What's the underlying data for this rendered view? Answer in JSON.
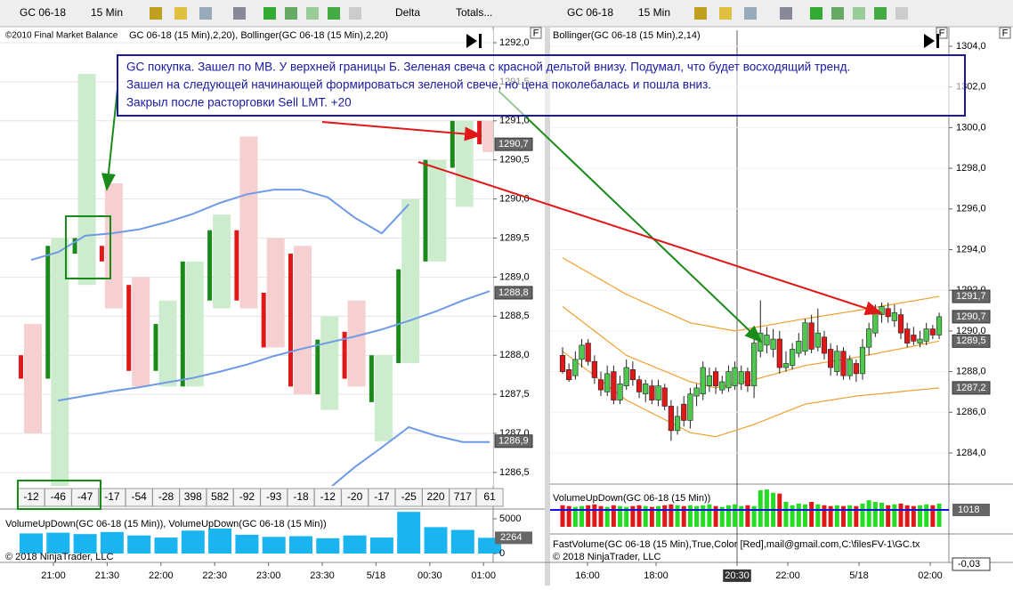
{
  "toolbar": {
    "left": {
      "instrument": "GC 06-18",
      "interval": "15 Min",
      "study": "Delta",
      "mode": "Totals..."
    },
    "right": {
      "instrument": "GC 06-18",
      "interval": "15 Min"
    }
  },
  "panel_flag": "F",
  "annotation": [
    "GC покупка. Зашел по MB. У верхней границы Б. Зеленая свеча с красной дельтой внизу. Подумал, что будет восходящий тренд.",
    "Зашел на следующей начинающей формироваться зеленой свече, но цена поколебалась и пошла вниз.",
    "Закрыл после расторговки Sell LMT.  +20"
  ],
  "colors": {
    "up": "#1a8a1a",
    "down": "#e01818",
    "up_cell": "#cdeccd",
    "down_cell": "#f6d0d0",
    "band_left": "#6e9ae6",
    "band_right": "#f0a030",
    "volume_left": "#1ab4f0",
    "level_line": "#1010e0"
  },
  "left_chart": {
    "copyright": "©2010 Final Market Balance",
    "title": "GC 06-18 (15 Min),2,20), Bollinger(GC 06-18 (15 Min),2,20)",
    "yticks": [
      {
        "value": 1292.0,
        "label": "1292,0"
      },
      {
        "value": 1291.5,
        "label": "1291,5"
      },
      {
        "value": 1291.0,
        "label": "1291,0"
      },
      {
        "value": 1290.5,
        "label": "1290,5"
      },
      {
        "value": 1290.0,
        "label": "1290,0"
      },
      {
        "value": 1289.5,
        "label": "1289,5"
      },
      {
        "value": 1289.0,
        "label": "1289,0"
      },
      {
        "value": 1288.5,
        "label": "1288,5"
      },
      {
        "value": 1288.0,
        "label": "1288,0"
      },
      {
        "value": 1287.5,
        "label": "1287,5"
      },
      {
        "value": 1287.0,
        "label": "1287,0"
      },
      {
        "value": 1286.5,
        "label": "1286,5"
      }
    ],
    "price_markers": [
      {
        "value": 1290.7,
        "label": "1290,7"
      },
      {
        "value": 1288.8,
        "label": "1288,8"
      },
      {
        "value": 1286.9,
        "label": "1286,9"
      }
    ],
    "bars": [
      {
        "open": 1288.0,
        "high": 1288.4,
        "low": 1287.0,
        "close": 1287.7
      },
      {
        "open": 1287.7,
        "high": 1289.5,
        "low": 1286.3,
        "close": 1289.4
      },
      {
        "open": 1289.3,
        "high": 1291.6,
        "low": 1288.9,
        "close": 1289.5
      },
      {
        "open": 1289.4,
        "high": 1290.2,
        "low": 1288.6,
        "close": 1289.2
      },
      {
        "open": 1288.9,
        "high": 1289.0,
        "low": 1287.6,
        "close": 1287.8
      },
      {
        "open": 1287.8,
        "high": 1288.7,
        "low": 1287.6,
        "close": 1288.4
      },
      {
        "open": 1287.6,
        "high": 1289.2,
        "low": 1287.6,
        "close": 1289.2
      },
      {
        "open": 1288.7,
        "high": 1289.8,
        "low": 1288.6,
        "close": 1289.6
      },
      {
        "open": 1289.6,
        "high": 1290.8,
        "low": 1288.6,
        "close": 1288.7
      },
      {
        "open": 1288.8,
        "high": 1289.5,
        "low": 1288.1,
        "close": 1288.1
      },
      {
        "open": 1289.3,
        "high": 1289.4,
        "low": 1287.5,
        "close": 1287.6
      },
      {
        "open": 1287.5,
        "high": 1288.5,
        "low": 1287.3,
        "close": 1288.2
      },
      {
        "open": 1288.3,
        "high": 1288.7,
        "low": 1287.6,
        "close": 1287.7
      },
      {
        "open": 1287.4,
        "high": 1288.0,
        "low": 1286.9,
        "close": 1288.0
      },
      {
        "open": 1287.9,
        "high": 1290.0,
        "low": 1287.9,
        "close": 1289.1
      },
      {
        "open": 1289.2,
        "high": 1290.5,
        "low": 1289.2,
        "close": 1290.5
      },
      {
        "open": 1290.4,
        "high": 1291.0,
        "low": 1289.9,
        "close": 1291.0
      },
      {
        "open": 1291.0,
        "high": 1291.0,
        "low": 1290.6,
        "close": 1290.7
      }
    ],
    "bollinger": {
      "upper": [
        1289.22,
        1289.32,
        1289.53,
        1289.56,
        1289.61,
        1289.7,
        1289.81,
        1289.95,
        1290.06,
        1290.12,
        1290.12,
        1290.02,
        1289.76,
        1289.56,
        1289.93,
        null,
        null,
        null
      ],
      "middle": [
        null,
        1287.42,
        1287.48,
        1287.54,
        1287.59,
        1287.65,
        1287.71,
        1287.79,
        1287.88,
        1287.99,
        1288.08,
        1288.16,
        1288.24,
        1288.33,
        1288.44,
        1288.56,
        1288.7,
        1288.82
      ],
      "lower": [
        null,
        null,
        null,
        null,
        null,
        null,
        null,
        null,
        null,
        null,
        null,
        1286.28,
        1286.57,
        1286.82,
        1287.08,
        1286.97,
        1286.89,
        1286.89
      ]
    },
    "delta": [
      -12,
      -46,
      -47,
      -17,
      -54,
      -28,
      398,
      582,
      -92,
      -93,
      -18,
      -12,
      -20,
      -17,
      -25,
      220,
      717,
      61
    ],
    "volume": {
      "title": "VolumeUpDown(GC 06-18 (15 Min)), VolumeUpDown(GC 06-18 (15 Min))",
      "yticks": [
        0,
        5000
      ],
      "values": [
        2900,
        3000,
        2800,
        3100,
        2600,
        2300,
        3300,
        3600,
        2700,
        2400,
        2500,
        2200,
        2600,
        2300,
        6000,
        3800,
        3400,
        2264
      ],
      "last": 2264
    },
    "footer": "© 2018 NinjaTrader, LLC",
    "xticks": [
      "21:00",
      "21:30",
      "22:00",
      "22:30",
      "23:00",
      "23:30",
      "5/18",
      "00:30",
      "01:00"
    ]
  },
  "right_chart": {
    "title": "Bollinger(GC 06-18 (15 Min),2,14)",
    "yticks": [
      {
        "value": 1304.0,
        "label": "1304,0"
      },
      {
        "value": 1302.0,
        "label": "1302,0"
      },
      {
        "value": 1300.0,
        "label": "1300,0"
      },
      {
        "value": 1298.0,
        "label": "1298,0"
      },
      {
        "value": 1296.0,
        "label": "1296,0"
      },
      {
        "value": 1294.0,
        "label": "1294,0"
      },
      {
        "value": 1292.0,
        "label": "1292,0"
      },
      {
        "value": 1290.0,
        "label": "1290,0"
      },
      {
        "value": 1288.0,
        "label": "1288,0"
      },
      {
        "value": 1286.0,
        "label": "1286,0"
      },
      {
        "value": 1284.0,
        "label": "1284,0"
      }
    ],
    "price_markers": [
      {
        "value": 1291.7,
        "label": "1291,7"
      },
      {
        "value": 1290.7,
        "label": "1290,7"
      },
      {
        "value": 1289.5,
        "label": "1289,5"
      },
      {
        "value": 1287.2,
        "label": "1287,2"
      }
    ],
    "candles": [
      {
        "open": 1288.8,
        "high": 1289.2,
        "low": 1287.9,
        "close": 1288.0
      },
      {
        "open": 1288.1,
        "high": 1288.4,
        "low": 1287.5,
        "close": 1287.6
      },
      {
        "open": 1287.8,
        "high": 1289.0,
        "low": 1287.6,
        "close": 1288.6
      },
      {
        "open": 1288.6,
        "high": 1289.6,
        "low": 1288.2,
        "close": 1289.3
      },
      {
        "open": 1289.4,
        "high": 1289.6,
        "low": 1288.3,
        "close": 1288.5
      },
      {
        "open": 1288.5,
        "high": 1288.8,
        "low": 1287.4,
        "close": 1287.7
      },
      {
        "open": 1287.6,
        "high": 1288.0,
        "low": 1286.8,
        "close": 1287.1
      },
      {
        "open": 1287.0,
        "high": 1288.3,
        "low": 1286.8,
        "close": 1287.9
      },
      {
        "open": 1288.0,
        "high": 1288.3,
        "low": 1286.4,
        "close": 1286.6
      },
      {
        "open": 1286.6,
        "high": 1287.8,
        "low": 1286.4,
        "close": 1287.4
      },
      {
        "open": 1287.3,
        "high": 1288.6,
        "low": 1287.1,
        "close": 1288.2
      },
      {
        "open": 1288.1,
        "high": 1288.5,
        "low": 1287.3,
        "close": 1287.6
      },
      {
        "open": 1287.6,
        "high": 1287.8,
        "low": 1286.7,
        "close": 1287.0
      },
      {
        "open": 1286.9,
        "high": 1287.6,
        "low": 1286.5,
        "close": 1287.4
      },
      {
        "open": 1287.3,
        "high": 1287.6,
        "low": 1286.4,
        "close": 1286.6
      },
      {
        "open": 1286.6,
        "high": 1287.6,
        "low": 1286.3,
        "close": 1287.3
      },
      {
        "open": 1287.2,
        "high": 1287.4,
        "low": 1286.1,
        "close": 1286.3
      },
      {
        "open": 1286.3,
        "high": 1286.6,
        "low": 1284.6,
        "close": 1285.1
      },
      {
        "open": 1285.1,
        "high": 1286.3,
        "low": 1284.9,
        "close": 1285.8
      },
      {
        "open": 1286.4,
        "high": 1286.8,
        "low": 1285.3,
        "close": 1285.6
      },
      {
        "open": 1285.6,
        "high": 1287.2,
        "low": 1285.2,
        "close": 1286.9
      },
      {
        "open": 1286.8,
        "high": 1287.4,
        "low": 1286.3,
        "close": 1287.2
      },
      {
        "open": 1286.9,
        "high": 1288.5,
        "low": 1286.6,
        "close": 1288.2
      },
      {
        "open": 1287.3,
        "high": 1288.2,
        "low": 1287.0,
        "close": 1287.8
      },
      {
        "open": 1288.0,
        "high": 1288.2,
        "low": 1286.9,
        "close": 1287.3
      },
      {
        "open": 1287.1,
        "high": 1287.8,
        "low": 1286.9,
        "close": 1287.5
      },
      {
        "open": 1287.2,
        "high": 1288.3,
        "low": 1287.0,
        "close": 1288.0
      },
      {
        "open": 1287.3,
        "high": 1288.5,
        "low": 1287.1,
        "close": 1288.2
      },
      {
        "open": 1287.4,
        "high": 1288.3,
        "low": 1287.1,
        "close": 1288.0
      },
      {
        "open": 1288.0,
        "high": 1288.2,
        "low": 1287.0,
        "close": 1287.3
      },
      {
        "open": 1287.3,
        "high": 1289.8,
        "low": 1286.7,
        "close": 1289.4
      },
      {
        "open": 1289.0,
        "high": 1291.5,
        "low": 1288.7,
        "close": 1289.9
      },
      {
        "open": 1289.3,
        "high": 1290.2,
        "low": 1288.9,
        "close": 1289.8
      },
      {
        "open": 1289.1,
        "high": 1290.1,
        "low": 1288.7,
        "close": 1289.6
      },
      {
        "open": 1289.6,
        "high": 1290.0,
        "low": 1287.9,
        "close": 1288.2
      },
      {
        "open": 1288.2,
        "high": 1289.0,
        "low": 1288.0,
        "close": 1288.4
      },
      {
        "open": 1288.3,
        "high": 1289.4,
        "low": 1288.1,
        "close": 1289.1
      },
      {
        "open": 1288.9,
        "high": 1289.9,
        "low": 1288.7,
        "close": 1289.5
      },
      {
        "open": 1289.0,
        "high": 1290.6,
        "low": 1288.8,
        "close": 1290.4
      },
      {
        "open": 1290.4,
        "high": 1290.8,
        "low": 1288.9,
        "close": 1289.1
      },
      {
        "open": 1289.2,
        "high": 1291.1,
        "low": 1289.0,
        "close": 1289.9
      },
      {
        "open": 1289.7,
        "high": 1290.0,
        "low": 1288.6,
        "close": 1288.9
      },
      {
        "open": 1289.1,
        "high": 1289.4,
        "low": 1287.8,
        "close": 1288.2
      },
      {
        "open": 1288.0,
        "high": 1289.3,
        "low": 1287.8,
        "close": 1289.0
      },
      {
        "open": 1289.0,
        "high": 1289.2,
        "low": 1287.6,
        "close": 1287.8
      },
      {
        "open": 1287.8,
        "high": 1288.8,
        "low": 1287.6,
        "close": 1288.6
      },
      {
        "open": 1288.4,
        "high": 1288.6,
        "low": 1287.5,
        "close": 1287.9
      },
      {
        "open": 1287.9,
        "high": 1289.6,
        "low": 1287.6,
        "close": 1289.2
      },
      {
        "open": 1289.2,
        "high": 1290.4,
        "low": 1288.8,
        "close": 1290.1
      },
      {
        "open": 1289.9,
        "high": 1291.3,
        "low": 1289.7,
        "close": 1291.0
      },
      {
        "open": 1290.8,
        "high": 1291.4,
        "low": 1290.4,
        "close": 1291.2
      },
      {
        "open": 1291.1,
        "high": 1291.4,
        "low": 1290.4,
        "close": 1290.7
      },
      {
        "open": 1290.5,
        "high": 1291.3,
        "low": 1290.2,
        "close": 1290.9
      },
      {
        "open": 1290.8,
        "high": 1291.1,
        "low": 1289.6,
        "close": 1289.9
      },
      {
        "open": 1290.1,
        "high": 1290.4,
        "low": 1289.2,
        "close": 1289.4
      },
      {
        "open": 1289.8,
        "high": 1290.2,
        "low": 1289.3,
        "close": 1289.5
      },
      {
        "open": 1289.4,
        "high": 1290.0,
        "low": 1289.2,
        "close": 1289.6
      },
      {
        "open": 1289.5,
        "high": 1290.4,
        "low": 1289.3,
        "close": 1290.1
      },
      {
        "open": 1290.1,
        "high": 1290.3,
        "low": 1289.6,
        "close": 1289.8
      },
      {
        "open": 1289.8,
        "high": 1290.9,
        "low": 1289.6,
        "close": 1290.7
      }
    ],
    "bollinger": {
      "upper": [
        1293.6,
        1293.42,
        1293.24,
        1293.06,
        1292.88,
        1292.7,
        1292.52,
        1292.34,
        1292.16,
        1291.98,
        1291.8,
        1291.66,
        1291.52,
        1291.38,
        1291.24,
        1291.1,
        1290.96,
        1290.82,
        1290.68,
        1290.54,
        1290.4,
        1290.34,
        1290.29,
        1290.23,
        1290.17,
        1290.11,
        1290.06,
        1290.0,
        1290.05,
        1290.11,
        1290.16,
        1290.22,
        1290.27,
        1290.33,
        1290.38,
        1290.44,
        1290.49,
        1290.55,
        1290.6,
        1290.65,
        1290.7,
        1290.75,
        1290.8,
        1290.85,
        1290.9,
        1290.95,
        1291.0,
        1291.05,
        1291.11,
        1291.16,
        1291.22,
        1291.27,
        1291.32,
        1291.38,
        1291.43,
        1291.48,
        1291.54,
        1291.59,
        1291.65,
        1291.7
      ],
      "middle": [
        1291.2,
        1290.96,
        1290.72,
        1290.48,
        1290.24,
        1290.0,
        1289.76,
        1289.52,
        1289.28,
        1289.04,
        1288.8,
        1288.67,
        1288.54,
        1288.41,
        1288.28,
        1288.15,
        1288.02,
        1287.89,
        1287.76,
        1287.63,
        1287.5,
        1287.43,
        1287.35,
        1287.28,
        1287.2,
        1287.27,
        1287.33,
        1287.4,
        1287.47,
        1287.53,
        1287.6,
        1287.69,
        1287.78,
        1287.86,
        1287.95,
        1288.04,
        1288.13,
        1288.21,
        1288.3,
        1288.35,
        1288.4,
        1288.45,
        1288.5,
        1288.55,
        1288.6,
        1288.65,
        1288.7,
        1288.76,
        1288.82,
        1288.88,
        1288.95,
        1289.01,
        1289.07,
        1289.13,
        1289.19,
        1289.25,
        1289.32,
        1289.38,
        1289.44,
        1289.5
      ],
      "lower": [
        1289.0,
        1288.76,
        1288.52,
        1288.28,
        1288.04,
        1287.8,
        1287.56,
        1287.32,
        1287.08,
        1286.84,
        1286.6,
        1286.44,
        1286.28,
        1286.12,
        1285.96,
        1285.8,
        1285.64,
        1285.48,
        1285.32,
        1285.16,
        1285.0,
        1284.95,
        1284.9,
        1284.85,
        1284.8,
        1284.9,
        1285.0,
        1285.1,
        1285.2,
        1285.3,
        1285.4,
        1285.53,
        1285.65,
        1285.78,
        1285.9,
        1286.03,
        1286.15,
        1286.28,
        1286.4,
        1286.45,
        1286.5,
        1286.55,
        1286.6,
        1286.65,
        1286.7,
        1286.75,
        1286.8,
        1286.83,
        1286.86,
        1286.89,
        1286.92,
        1286.95,
        1286.98,
        1287.02,
        1287.05,
        1287.08,
        1287.11,
        1287.14,
        1287.17,
        1287.2
      ]
    },
    "volume": {
      "title": "VolumeUpDown(GC 06-18 (15 Min))",
      "level": 1018,
      "values": [
        1300,
        1250,
        1200,
        1250,
        1300,
        1350,
        1250,
        1200,
        1300,
        1250,
        1200,
        1250,
        1300,
        1250,
        1200,
        1250,
        1300,
        1350,
        1300,
        1250,
        1300,
        1250,
        1300,
        1350,
        1250,
        1200,
        1300,
        1350,
        1250,
        1300,
        1250,
        2200,
        2250,
        2050,
        2000,
        1500,
        1300,
        1400,
        1350,
        1500,
        1350,
        1300,
        1250,
        1300,
        1250,
        1300,
        1250,
        1400,
        1600,
        1500,
        1450,
        1300,
        1350,
        1400,
        1300,
        1250,
        1300,
        1350,
        1300,
        1400
      ]
    },
    "fast_volume": {
      "title": "FastVolume(GC  06-18  (15  Min),True,Color  [Red],mail@gmail.com,C:\\filesFV-1\\GC.tx",
      "marker": {
        "value": -0.03,
        "label": "-0,03"
      }
    },
    "footer": "© 2018 NinjaTrader, LLC",
    "xticks": [
      "16:00",
      "18:00",
      "20:30",
      "22:00",
      "5/18",
      "02:00"
    ]
  }
}
